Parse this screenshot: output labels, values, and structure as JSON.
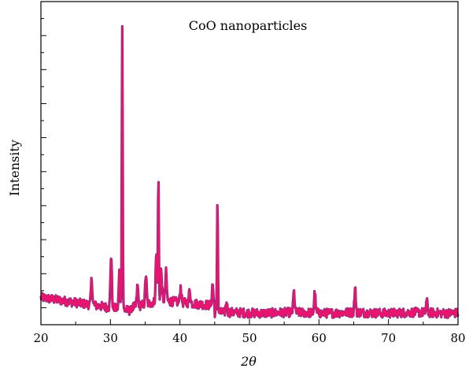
{
  "chart_data": {
    "type": "line",
    "title": "CoO nanoparticles",
    "xlabel": "2θ",
    "ylabel": "Intensity",
    "xlim": [
      20,
      80
    ],
    "ylim": [
      -0.2,
      3.6
    ],
    "x_ticks": [
      20,
      30,
      40,
      50,
      60,
      70,
      80
    ],
    "grid": false,
    "legend": "none",
    "y_tick_labels_shown": false,
    "series": [
      {
        "color": "#e8146e",
        "outline_color": "#5a3a8a",
        "peaks": [
          {
            "x": 27.3,
            "y": 0.3
          },
          {
            "x": 30.1,
            "y": 0.62
          },
          {
            "x": 31.3,
            "y": 0.45
          },
          {
            "x": 31.7,
            "y": 3.33
          },
          {
            "x": 33.9,
            "y": 0.24
          },
          {
            "x": 35.1,
            "y": 0.35
          },
          {
            "x": 36.6,
            "y": 0.55
          },
          {
            "x": 36.9,
            "y": 1.45
          },
          {
            "x": 37.3,
            "y": 0.35
          },
          {
            "x": 38.0,
            "y": 0.32
          },
          {
            "x": 40.1,
            "y": 0.18
          },
          {
            "x": 41.4,
            "y": 0.16
          },
          {
            "x": 44.7,
            "y": 0.25
          },
          {
            "x": 45.4,
            "y": 1.33
          },
          {
            "x": 46.7,
            "y": 0.12
          },
          {
            "x": 56.4,
            "y": 0.24
          },
          {
            "x": 59.4,
            "y": 0.24
          },
          {
            "x": 65.2,
            "y": 0.27
          },
          {
            "x": 75.5,
            "y": 0.14
          }
        ]
      }
    ]
  }
}
